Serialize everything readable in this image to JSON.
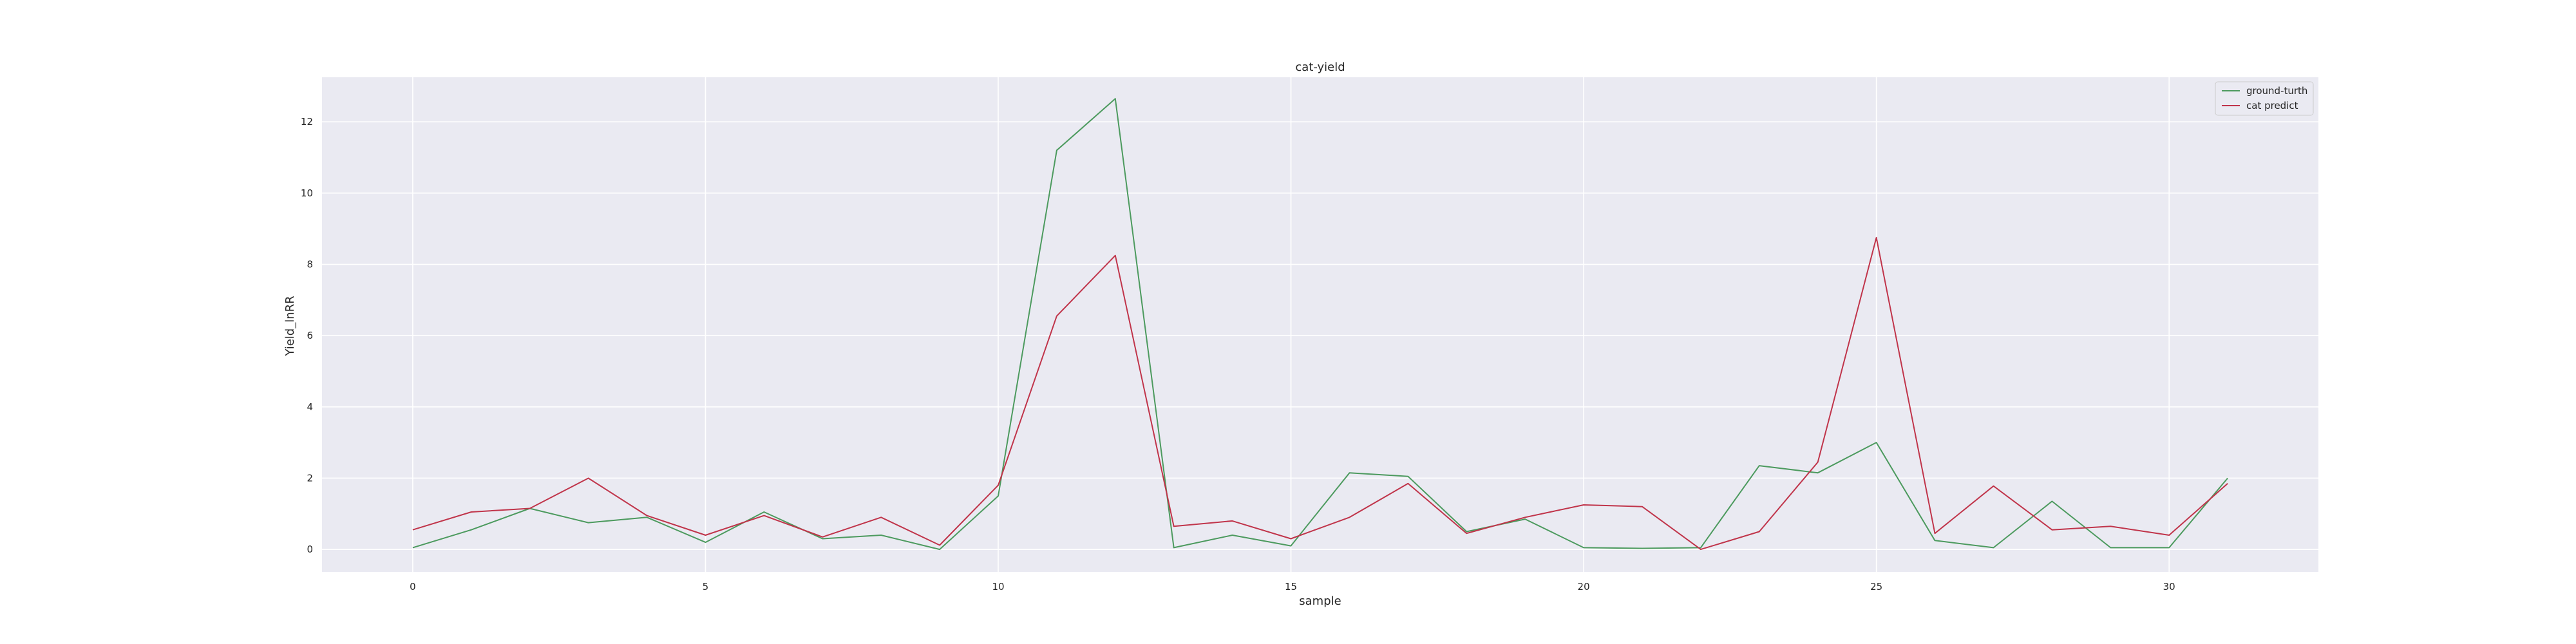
{
  "chart_data": {
    "type": "line",
    "title": "cat-yield",
    "xlabel": "sample",
    "ylabel": "Yield_lnRR",
    "xlim": [
      -1.55,
      32.55
    ],
    "ylim": [
      -0.63,
      13.25
    ],
    "xticks": [
      0,
      5,
      10,
      15,
      20,
      25,
      30
    ],
    "yticks": [
      0,
      2,
      4,
      6,
      8,
      10,
      12
    ],
    "grid": true,
    "legend_position": "top-right",
    "x": [
      0,
      1,
      2,
      3,
      4,
      5,
      6,
      7,
      8,
      9,
      10,
      11,
      12,
      13,
      14,
      15,
      16,
      17,
      18,
      19,
      20,
      21,
      22,
      23,
      24,
      25,
      26,
      27,
      28,
      29,
      30,
      31
    ],
    "series": [
      {
        "name": "ground-turth",
        "color": "#4c9a5e",
        "values": [
          0.05,
          0.55,
          1.15,
          0.75,
          0.9,
          0.2,
          1.05,
          0.3,
          0.4,
          0.0,
          1.5,
          11.2,
          12.65,
          0.05,
          0.4,
          0.1,
          2.15,
          2.05,
          0.5,
          0.85,
          0.05,
          0.03,
          0.05,
          2.35,
          2.15,
          3.0,
          0.25,
          0.05,
          1.35,
          0.05,
          0.05,
          2.0
        ]
      },
      {
        "name": "cat predict",
        "color": "#c0344a",
        "values": [
          0.55,
          1.05,
          1.15,
          2.0,
          0.95,
          0.4,
          0.95,
          0.35,
          0.9,
          0.12,
          1.8,
          6.55,
          8.25,
          0.65,
          0.8,
          0.3,
          0.9,
          1.85,
          0.45,
          0.9,
          1.25,
          1.2,
          0.0,
          0.5,
          2.45,
          8.75,
          0.45,
          1.78,
          0.55,
          0.65,
          0.4,
          1.85
        ]
      }
    ]
  }
}
